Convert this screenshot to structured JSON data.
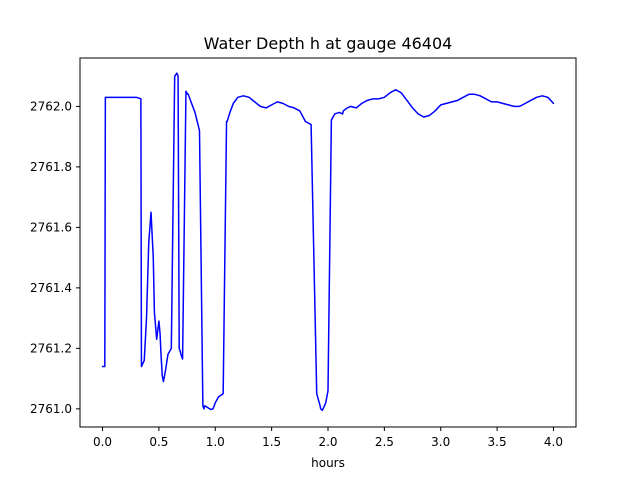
{
  "chart_data": {
    "type": "line",
    "title": "Water Depth h at gauge 46404",
    "xlabel": "hours",
    "ylabel": "",
    "xlim": [
      -0.2,
      4.2
    ],
    "ylim": [
      2760.94,
      2762.16
    ],
    "xticks": [
      0.0,
      0.5,
      1.0,
      1.5,
      2.0,
      2.5,
      3.0,
      3.5,
      4.0
    ],
    "xtick_labels": [
      "0.0",
      "0.5",
      "1.0",
      "1.5",
      "2.0",
      "2.5",
      "3.0",
      "3.5",
      "4.0"
    ],
    "yticks": [
      2761.0,
      2761.2,
      2761.4,
      2761.6,
      2761.8,
      2762.0
    ],
    "ytick_labels": [
      "2761.0",
      "2761.2",
      "2761.4",
      "2761.6",
      "2761.8",
      "2762.0"
    ],
    "grid": false,
    "series": [
      {
        "color": "#0000ff",
        "x": [
          0.0,
          0.02,
          0.025,
          0.1,
          0.2,
          0.3,
          0.34,
          0.345,
          0.37,
          0.39,
          0.41,
          0.43,
          0.45,
          0.46,
          0.48,
          0.5,
          0.51,
          0.52,
          0.53,
          0.54,
          0.56,
          0.58,
          0.61,
          0.64,
          0.66,
          0.67,
          0.68,
          0.69,
          0.695,
          0.71,
          0.74,
          0.755,
          0.76,
          0.78,
          0.82,
          0.86,
          0.89,
          0.9,
          0.905,
          0.93,
          0.96,
          0.98,
          1.0,
          1.03,
          1.07,
          1.1,
          1.105,
          1.13,
          1.16,
          1.2,
          1.25,
          1.3,
          1.35,
          1.4,
          1.45,
          1.5,
          1.55,
          1.6,
          1.65,
          1.7,
          1.75,
          1.8,
          1.85,
          1.9,
          1.93,
          1.935,
          1.95,
          1.98,
          2.0,
          2.03,
          2.06,
          2.1,
          2.13,
          2.135,
          2.17,
          2.2,
          2.25,
          2.3,
          2.35,
          2.4,
          2.45,
          2.5,
          2.55,
          2.6,
          2.65,
          2.7,
          2.75,
          2.8,
          2.85,
          2.9,
          2.95,
          3.0,
          3.05,
          3.1,
          3.15,
          3.2,
          3.25,
          3.3,
          3.35,
          3.4,
          3.45,
          3.5,
          3.55,
          3.6,
          3.65,
          3.7,
          3.75,
          3.8,
          3.85,
          3.9,
          3.95,
          4.0
        ],
        "y": [
          2761.14,
          2761.14,
          2762.03,
          2762.03,
          2762.03,
          2762.03,
          2762.025,
          2761.14,
          2761.16,
          2761.3,
          2761.55,
          2761.65,
          2761.5,
          2761.32,
          2761.23,
          2761.29,
          2761.25,
          2761.17,
          2761.11,
          2761.09,
          2761.13,
          2761.18,
          2761.2,
          2762.1,
          2762.11,
          2762.1,
          2761.2,
          2761.19,
          2761.18,
          2761.165,
          2762.05,
          2762.04,
          2762.04,
          2762.02,
          2761.98,
          2761.92,
          2761.01,
          2761.0,
          2761.01,
          2761.005,
          2760.998,
          2761.0,
          2761.02,
          2761.04,
          2761.05,
          2761.95,
          2761.95,
          2761.98,
          2762.01,
          2762.03,
          2762.035,
          2762.03,
          2762.015,
          2762.0,
          2761.995,
          2762.005,
          2762.015,
          2762.01,
          2762.0,
          2761.995,
          2761.985,
          2761.95,
          2761.94,
          2761.05,
          2761.01,
          2761.0,
          2760.995,
          2761.02,
          2761.06,
          2761.955,
          2761.975,
          2761.98,
          2761.975,
          2761.985,
          2761.995,
          2762.0,
          2761.995,
          2762.01,
          2762.02,
          2762.025,
          2762.025,
          2762.03,
          2762.045,
          2762.055,
          2762.045,
          2762.02,
          2761.995,
          2761.975,
          2761.965,
          2761.97,
          2761.985,
          2762.005,
          2762.01,
          2762.015,
          2762.02,
          2762.03,
          2762.04,
          2762.04,
          2762.035,
          2762.025,
          2762.015,
          2762.015,
          2762.01,
          2762.005,
          2762.0,
          2762.0,
          2762.01,
          2762.02,
          2762.03,
          2762.035,
          2762.03,
          2762.01
        ],
        "note": ""
      }
    ]
  }
}
